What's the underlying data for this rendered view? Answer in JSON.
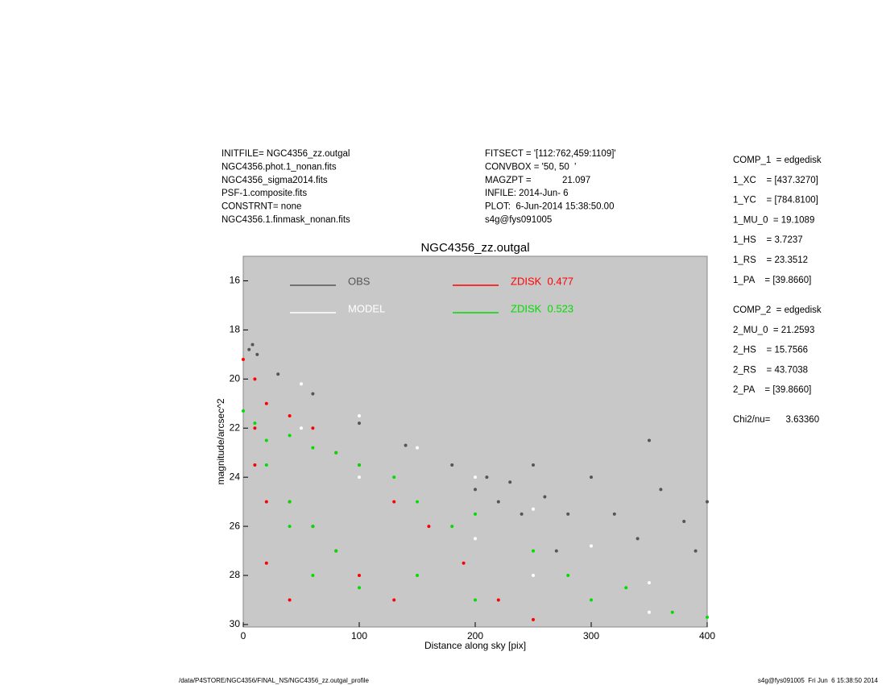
{
  "header": {
    "left": [
      "INITFILE= NGC4356_zz.outgal",
      "NGC4356.phot.1_nonan.fits",
      "NGC4356_sigma2014.fits",
      "PSF-1.composite.fits",
      "CONSTRNT= none",
      "NGC4356.1.finmask_nonan.fits"
    ],
    "middle": [
      "FITSECT = '[112:762,459:1109]'",
      "CONVBOX = '50, 50  '",
      "MAGZPT =            21.097",
      "INFILE: 2014-Jun- 6",
      "PLOT:  6-Jun-2014 15:38:50.00",
      "s4g@fys091005"
    ],
    "params": [
      "COMP_1  = edgedisk",
      "1_XC    = [437.3270]",
      "1_YC    = [784.8100]",
      "1_MU_0  = 19.1089",
      "1_HS    = 3.7237",
      "1_RS    = 23.3512",
      "1_PA    = [39.8660]",
      "COMP_2  = edgedisk",
      "2_MU_0  = 21.2593",
      "2_HS    = 15.7566",
      "2_RS    = 43.7038",
      "2_PA    = [39.8660]",
      "Chi2/nu=      3.63360"
    ]
  },
  "footer": {
    "left": "/data/P4STORE/NGC4356/FINAL_NS/NGC4356_zz.outgal_profile",
    "right": "s4g@fys091005  Fri Jun  6 15:38:50 2014"
  },
  "chart_data": {
    "type": "scatter",
    "title": "NGC4356_zz.outgal",
    "x_label": "Distance along sky [pix]",
    "y_label": "magnitude/arcsec^2",
    "xlim": [
      0,
      400
    ],
    "xticks": [
      0,
      100,
      200,
      300,
      400
    ],
    "ylim": [
      15,
      30.1
    ],
    "y_inverted": true,
    "yticks": [
      16,
      18,
      20,
      22,
      24,
      26,
      28,
      30
    ],
    "background": "#c8c8c8",
    "series": [
      {
        "name": "OBS",
        "color": "#555555",
        "x": [
          5,
          8,
          12,
          30,
          60,
          100,
          140,
          180,
          200,
          210,
          220,
          230,
          240,
          250,
          260,
          270,
          280,
          300,
          320,
          340,
          350,
          360,
          380,
          390,
          400
        ],
        "values": [
          18.8,
          18.6,
          19,
          19.8,
          20.6,
          21.8,
          22.7,
          23.5,
          24.5,
          24,
          25,
          24.2,
          25.5,
          23.5,
          24.8,
          27,
          25.5,
          24,
          25.5,
          26.5,
          22.5,
          24.5,
          25.8,
          27,
          25
        ]
      },
      {
        "name": "MODEL",
        "color": "#ffffff",
        "x": [
          0,
          50,
          100,
          150,
          200,
          250,
          300,
          350,
          400,
          50,
          100,
          150,
          200,
          250,
          300,
          350
        ],
        "values": [
          19.2,
          20.2,
          21.5,
          22.8,
          24,
          25.3,
          26.8,
          28.3,
          29.7,
          22,
          24,
          25,
          26.5,
          28,
          29,
          29.5
        ]
      },
      {
        "name": "ZDISK  0.477",
        "color": "#ff0000",
        "x": [
          0,
          10,
          10,
          10,
          20,
          20,
          20,
          40,
          40,
          40,
          60,
          60,
          80,
          80,
          100,
          100,
          130,
          130,
          160,
          190,
          220,
          250
        ],
        "values": [
          19.2,
          20,
          22,
          23.5,
          21,
          25,
          27.5,
          21.5,
          25,
          29,
          22,
          26,
          23,
          27,
          23.5,
          28,
          25,
          29,
          26,
          27.5,
          29,
          29.8
        ]
      },
      {
        "name": "ZDISK  0.523",
        "color": "#00dd00",
        "x": [
          0,
          10,
          20,
          20,
          40,
          40,
          40,
          60,
          60,
          60,
          80,
          80,
          100,
          100,
          130,
          150,
          150,
          180,
          200,
          200,
          250,
          280,
          300,
          330,
          370,
          400
        ],
        "values": [
          21.3,
          21.8,
          22.5,
          23.5,
          22.3,
          25,
          26,
          22.8,
          26,
          28,
          23,
          27,
          23.5,
          28.5,
          24,
          25,
          28,
          26,
          25.5,
          29,
          27,
          28,
          29,
          28.5,
          29.5,
          29.7
        ]
      }
    ]
  }
}
